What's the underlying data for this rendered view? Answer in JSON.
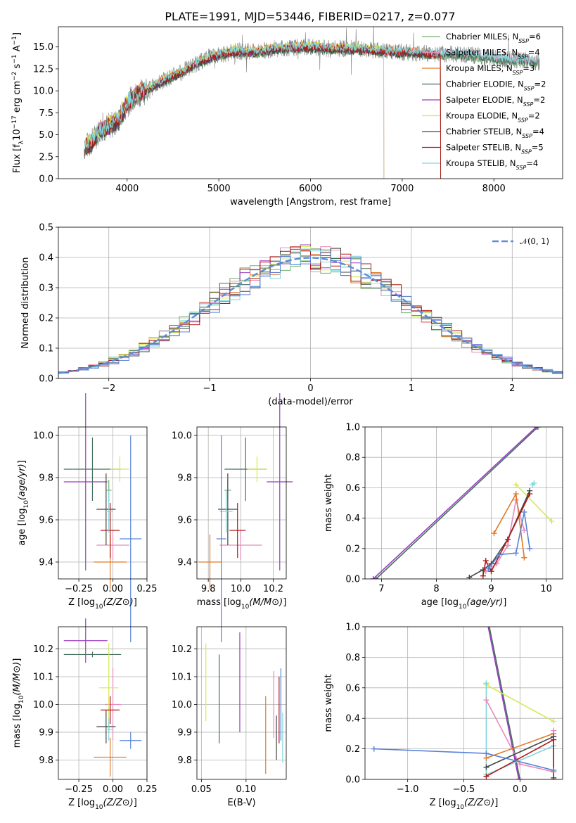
{
  "title": "PLATE=1991, MJD=53446, FIBERID=0217, z=0.077",
  "colors": {
    "Chabrier MILES": "#73b26e",
    "Salpeter MILES": "#e68bbd",
    "Kroupa MILES": "#e07b2a",
    "Chabrier ELODIE": "#44705a",
    "Salpeter ELODIE": "#9a3bc2",
    "Kroupa ELODIE": "#d6ea50",
    "Chabrier STELIB": "#444444",
    "Salpeter STELIB": "#b01818",
    "Kroupa STELIB": "#7fd7dc",
    "Gaussian": "#5b8dd6",
    "data": "#808080",
    "extra_blue": "#5a82d8"
  },
  "chart_data": [
    {
      "id": "spectrum",
      "type": "line",
      "xlabel": "wavelength [Angstrom, rest frame]",
      "ylabel": "Flux [f_λ 10^-17 erg cm^-2 s^-1 A^-1]",
      "xlim": [
        3250,
        8750
      ],
      "ylim": [
        0,
        17.3
      ],
      "xticks": [
        4000,
        5000,
        6000,
        7000,
        8000
      ],
      "yticks": [
        "0.0",
        "2.5",
        "5.0",
        "7.5",
        "10.0",
        "12.5",
        "15.0"
      ],
      "legend_position": "top-right",
      "legend": [
        {
          "model": "Chabrier MILES",
          "label": "Chabrier MILES, N",
          "sub": "SSP",
          "suffix": "=6"
        },
        {
          "model": "Salpeter MILES",
          "label": "Salpeter MILES, N",
          "sub": "SSP",
          "suffix": "=4"
        },
        {
          "model": "Kroupa MILES",
          "label": "Kroupa MILES, N",
          "sub": "SSP",
          "suffix": "=3"
        },
        {
          "model": "Chabrier ELODIE",
          "label": "Chabrier ELODIE, N",
          "sub": "SSP",
          "suffix": "=2"
        },
        {
          "model": "Salpeter ELODIE",
          "label": "Salpeter ELODIE, N",
          "sub": "SSP",
          "suffix": "=2"
        },
        {
          "model": "Kroupa ELODIE",
          "label": "Kroupa ELODIE, N",
          "sub": "SSP",
          "suffix": "=2"
        },
        {
          "model": "Chabrier STELIB",
          "label": "Chabrier STELIB, N",
          "sub": "SSP",
          "suffix": "=4"
        },
        {
          "model": "Salpeter STELIB",
          "label": "Salpeter STELIB, N",
          "sub": "SSP",
          "suffix": "=5"
        },
        {
          "model": "Kroupa STELIB",
          "label": "Kroupa STELIB, N",
          "sub": "SSP",
          "suffix": "=4"
        }
      ],
      "continuum": {
        "x": [
          3530,
          3600,
          3700,
          3800,
          3900,
          4000,
          4100,
          4200,
          4300,
          4400,
          4500,
          4600,
          4700,
          4800,
          4900,
          5000,
          5200,
          5400,
          5600,
          5800,
          6000,
          6200,
          6400,
          6600,
          6800,
          7000,
          7200,
          7400,
          7600,
          7800,
          8000,
          8200,
          8400,
          8500
        ],
        "y": [
          3.5,
          4.0,
          5.5,
          6.0,
          6.5,
          8.5,
          9.6,
          10.0,
          10.6,
          11.2,
          11.7,
          12.2,
          12.8,
          13.3,
          13.8,
          14.1,
          14.5,
          14.4,
          14.8,
          14.9,
          15.0,
          14.8,
          14.8,
          14.7,
          14.5,
          14.4,
          14.3,
          14.2,
          14.2,
          14.0,
          13.7,
          13.5,
          13.4,
          13.2
        ]
      }
    },
    {
      "id": "residuals",
      "type": "line",
      "xlabel": "(data-model)/error",
      "ylabel": "Normed distribution",
      "xlim": [
        -2.5,
        2.5
      ],
      "ylim": [
        0,
        0.5
      ],
      "xticks": [
        "−2",
        "−1",
        "0",
        "1",
        "2"
      ],
      "yticks": [
        "0.0",
        "0.1",
        "0.2",
        "0.3",
        "0.4",
        "0.5"
      ],
      "legend": "𝒩(0, 1)",
      "legend_position": "top-right",
      "bin_width": 0.1
    },
    {
      "id": "z_age",
      "type": "scatter",
      "xlabel": "Z [log10(Z/Z⊙)]",
      "ylabel": "age  [log10(age/yr)]",
      "xlim": [
        -0.4,
        0.25
      ],
      "ylim": [
        9.32,
        10.04
      ],
      "xticks": [
        "−0.25",
        "0.00",
        "0.25"
      ],
      "yticks": [
        "9.4",
        "9.6",
        "9.8",
        "10.0"
      ],
      "points": [
        {
          "model": "Chabrier MILES",
          "x": -0.03,
          "y": 9.74,
          "xerr": 0.02,
          "yerr": 0.05
        },
        {
          "model": "Salpeter MILES",
          "x": 0.0,
          "y": 9.48,
          "xerr": 0.12,
          "yerr": 0.07
        },
        {
          "model": "Kroupa MILES",
          "x": -0.02,
          "y": 9.4,
          "xerr": 0.12,
          "yerr": 0.13
        },
        {
          "model": "Chabrier ELODIE",
          "x": -0.15,
          "y": 9.84,
          "xerr": 0.21,
          "yerr": 0.15
        },
        {
          "model": "Salpeter ELODIE",
          "x": -0.2,
          "y": 9.78,
          "xerr": 0.16,
          "yerr": 0.42
        },
        {
          "model": "Kroupa ELODIE",
          "x": 0.05,
          "y": 9.84,
          "xerr": 0.07,
          "yerr": 0.06
        },
        {
          "model": "Chabrier STELIB",
          "x": -0.05,
          "y": 9.65,
          "xerr": 0.07,
          "yerr": 0.17
        },
        {
          "model": "Salpeter STELIB",
          "x": -0.02,
          "y": 9.55,
          "xerr": 0.07,
          "yerr": 0.13
        },
        {
          "model": "Kroupa STELIB",
          "x": -0.03,
          "y": 9.64,
          "xerr": 0.03,
          "yerr": 0.1
        },
        {
          "model": "extra_blue",
          "x": 0.13,
          "y": 9.51,
          "xerr": 0.08,
          "yerr": 0.49
        }
      ]
    },
    {
      "id": "mass_age",
      "type": "scatter",
      "xlabel": "mass [log10(M/M⊙)]",
      "ylabel": "",
      "xlim": [
        9.73,
        10.28
      ],
      "ylim": [
        9.32,
        10.04
      ],
      "xticks": [
        "9.8",
        "10.0",
        "10.2"
      ],
      "yticks": [
        "9.4",
        "9.6",
        "9.8",
        "10.0"
      ],
      "points": [
        {
          "model": "Chabrier MILES",
          "x": 9.92,
          "y": 9.74,
          "xerr": 0.02,
          "yerr": 0.05
        },
        {
          "model": "Salpeter MILES",
          "x": 10.0,
          "y": 9.48,
          "xerr": 0.13,
          "yerr": 0.07
        },
        {
          "model": "Kroupa MILES",
          "x": 9.81,
          "y": 9.4,
          "xerr": 0.07,
          "yerr": 0.13
        },
        {
          "model": "Chabrier ELODIE",
          "x": 10.03,
          "y": 9.84,
          "xerr": 0.13,
          "yerr": 0.15
        },
        {
          "model": "Salpeter ELODIE",
          "x": 10.24,
          "y": 9.78,
          "xerr": 0.08,
          "yerr": 0.42
        },
        {
          "model": "Kroupa ELODIE",
          "x": 10.1,
          "y": 9.84,
          "xerr": 0.06,
          "yerr": 0.06
        },
        {
          "model": "Chabrier STELIB",
          "x": 9.92,
          "y": 9.65,
          "xerr": 0.06,
          "yerr": 0.17
        },
        {
          "model": "Salpeter STELIB",
          "x": 9.98,
          "y": 9.55,
          "xerr": 0.05,
          "yerr": 0.13
        },
        {
          "model": "Kroupa STELIB",
          "x": 9.91,
          "y": 9.64,
          "xerr": 0.04,
          "yerr": 0.1
        },
        {
          "model": "extra_blue",
          "x": 9.88,
          "y": 9.51,
          "xerr": 0.03,
          "yerr": 0.49
        }
      ]
    },
    {
      "id": "age_weight",
      "type": "line",
      "xlabel": "age  [log10(age/yr)]",
      "ylabel": "mass weight",
      "xlim": [
        6.7,
        10.3
      ],
      "ylim": [
        0,
        1.0
      ],
      "xticks": [
        "7",
        "8",
        "9",
        "10"
      ],
      "yticks": [
        "0.0",
        "0.2",
        "0.4",
        "0.6",
        "0.8",
        "1.0"
      ],
      "series": [
        {
          "model": "Chabrier ELODIE",
          "x": [
            6.9,
            9.85
          ],
          "y": [
            0.0,
            1.0
          ]
        },
        {
          "model": "Salpeter ELODIE",
          "x": [
            6.85,
            9.82
          ],
          "y": [
            0.0,
            1.0
          ]
        },
        {
          "model": "Kroupa ELODIE",
          "x": [
            9.45,
            10.1
          ],
          "y": [
            0.62,
            0.38
          ]
        },
        {
          "model": "Kroupa STELIB",
          "x": [
            9.75,
            9.78
          ],
          "y": [
            0.62,
            0.63
          ]
        },
        {
          "model": "Salpeter MILES",
          "x": [
            8.9,
            9.1,
            9.3,
            9.45,
            9.6
          ],
          "y": [
            0.05,
            0.1,
            0.22,
            0.52,
            0.32
          ]
        },
        {
          "model": "Kroupa MILES",
          "x": [
            9.05,
            9.45,
            9.6
          ],
          "y": [
            0.3,
            0.56,
            0.14
          ]
        },
        {
          "model": "Chabrier STELIB",
          "x": [
            8.6,
            8.85,
            9.0,
            9.3,
            9.7
          ],
          "y": [
            0.01,
            0.06,
            0.1,
            0.26,
            0.58
          ]
        },
        {
          "model": "Salpeter STELIB",
          "x": [
            8.85,
            8.9,
            9.0,
            9.3,
            9.7
          ],
          "y": [
            0.02,
            0.12,
            0.05,
            0.26,
            0.56
          ]
        },
        {
          "model": "extra_blue",
          "x": [
            8.95,
            9.15,
            9.45,
            9.6,
            9.7
          ],
          "y": [
            0.07,
            0.16,
            0.17,
            0.44,
            0.2
          ]
        }
      ]
    },
    {
      "id": "z_mass",
      "type": "scatter",
      "xlabel": "Z [log10(Z/Z⊙)]",
      "ylabel": "mass [log10(M/M⊙)]",
      "xlim": [
        -0.4,
        0.25
      ],
      "ylim": [
        9.73,
        10.28
      ],
      "xticks": [
        "−0.25",
        "0.00",
        "0.25"
      ],
      "yticks": [
        "9.8",
        "9.9",
        "10.0",
        "10.1",
        "10.2"
      ],
      "points": [
        {
          "model": "Chabrier MILES",
          "x": -0.03,
          "y": 9.92,
          "xerr": 0.02,
          "yerr": 0.02
        },
        {
          "model": "Salpeter MILES",
          "x": 0.0,
          "y": 10.0,
          "xerr": 0.06,
          "yerr": 0.13
        },
        {
          "model": "Kroupa MILES",
          "x": -0.02,
          "y": 9.81,
          "xerr": 0.12,
          "yerr": 0.07
        },
        {
          "model": "Chabrier ELODIE",
          "x": -0.15,
          "y": 10.18,
          "xerr": 0.21,
          "yerr": 0.01
        },
        {
          "model": "Salpeter ELODIE",
          "x": -0.2,
          "y": 10.23,
          "xerr": 0.16,
          "yerr": 0.08
        },
        {
          "model": "Kroupa ELODIE",
          "x": -0.03,
          "y": 10.06,
          "xerr": 0.07,
          "yerr": 0.16
        },
        {
          "model": "Chabrier STELIB",
          "x": -0.05,
          "y": 9.92,
          "xerr": 0.07,
          "yerr": 0.06
        },
        {
          "model": "Salpeter STELIB",
          "x": -0.02,
          "y": 9.98,
          "xerr": 0.07,
          "yerr": 0.05
        },
        {
          "model": "Kroupa STELIB",
          "x": -0.03,
          "y": 9.91,
          "xerr": 0.03,
          "yerr": 0.04
        },
        {
          "model": "extra_blue",
          "x": 0.13,
          "y": 9.87,
          "xerr": 0.08,
          "yerr": 0.03
        }
      ]
    },
    {
      "id": "ebv",
      "type": "scatter",
      "xlabel": "E(B-V)",
      "ylabel": "",
      "xlim": [
        0.045,
        0.145
      ],
      "ylim": [
        9.73,
        10.28
      ],
      "xticks": [
        "0.05",
        "0.10"
      ],
      "yticks": [
        "9.8",
        "9.9",
        "10.0",
        "10.1",
        "10.2"
      ],
      "points": [
        {
          "model": "Kroupa ELODIE",
          "x": 0.055,
          "y": 10.08,
          "yerr": 0.14
        },
        {
          "model": "Chabrier ELODIE",
          "x": 0.07,
          "y": 10.02,
          "yerr": 0.16
        },
        {
          "model": "Salpeter ELODIE",
          "x": 0.093,
          "y": 10.08,
          "yerr": 0.18
        },
        {
          "model": "Kroupa MILES",
          "x": 0.122,
          "y": 9.89,
          "yerr": 0.14
        },
        {
          "model": "Salpeter MILES",
          "x": 0.131,
          "y": 10.0,
          "yerr": 0.12
        },
        {
          "model": "Chabrier STELIB",
          "x": 0.134,
          "y": 9.88,
          "yerr": 0.08
        },
        {
          "model": "Salpeter STELIB",
          "x": 0.137,
          "y": 9.98,
          "yerr": 0.12
        },
        {
          "model": "extra_blue",
          "x": 0.139,
          "y": 10.0,
          "yerr": 0.13
        },
        {
          "model": "Kroupa STELIB",
          "x": 0.141,
          "y": 9.88,
          "yerr": 0.09
        }
      ]
    },
    {
      "id": "z_weight",
      "type": "line",
      "xlabel": "Z [log10(Z/Z⊙)]",
      "ylabel": "mass weight",
      "xlim": [
        -1.38,
        0.38
      ],
      "ylim": [
        0,
        1.0
      ],
      "xticks": [
        "−1.0",
        "−0.5",
        "0.0"
      ],
      "yticks": [
        "0.0",
        "0.2",
        "0.4",
        "0.6",
        "0.8",
        "1.0"
      ],
      "series": [
        {
          "model": "Chabrier ELODIE",
          "x": [
            -0.3,
            0.0
          ],
          "y": [
            1.1,
            0.0
          ]
        },
        {
          "model": "Salpeter ELODIE",
          "x": [
            -0.31,
            -0.01
          ],
          "y": [
            1.1,
            0.0
          ]
        },
        {
          "model": "Kroupa ELODIE",
          "x": [
            -0.3,
            0.3
          ],
          "y": [
            0.62,
            0.38
          ]
        },
        {
          "model": "Kroupa STELIB",
          "x": [
            -0.3,
            -0.3,
            0.3
          ],
          "y": [
            0.63,
            0.03,
            0.22
          ]
        },
        {
          "model": "Salpeter MILES",
          "x": [
            -0.3,
            0.0,
            0.3,
            0.3
          ],
          "y": [
            0.52,
            0.1,
            0.05,
            0.32
          ]
        },
        {
          "model": "Kroupa MILES",
          "x": [
            -0.3,
            0.3,
            0.3
          ],
          "y": [
            0.14,
            0.3,
            0.05
          ]
        },
        {
          "model": "Chabrier STELIB",
          "x": [
            -0.3,
            0.3,
            0.3
          ],
          "y": [
            0.08,
            0.28,
            0.01
          ]
        },
        {
          "model": "Salpeter STELIB",
          "x": [
            -0.3,
            0.3,
            0.3
          ],
          "y": [
            0.02,
            0.26,
            0.0
          ]
        },
        {
          "model": "extra_blue",
          "x": [
            -1.3,
            -0.3,
            0.3
          ],
          "y": [
            0.2,
            0.17,
            0.06
          ]
        }
      ]
    }
  ]
}
